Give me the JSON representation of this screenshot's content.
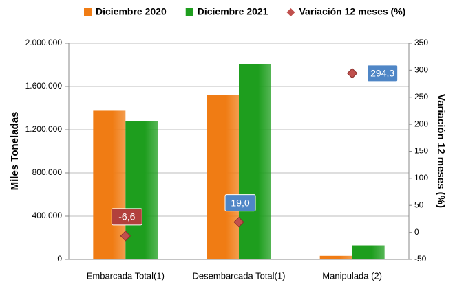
{
  "chart_data": {
    "type": "bar",
    "categories": [
      "Embarcada Total(1)",
      "Desembarcada Total(1)",
      "Manipulada (2)"
    ],
    "y_label": "Miles  Toneladas",
    "y2_label": "Variación 12 meses (%)",
    "series": [
      {
        "name": "Diciembre 2020",
        "color": "#f07c14",
        "values": [
          1375000,
          1518000,
          33000
        ]
      },
      {
        "name": "Diciembre 2021",
        "color": "#1e9e1e",
        "values": [
          1282000,
          1806000,
          130000
        ]
      },
      {
        "name": "Variación 12 meses (%)",
        "type": "scatter",
        "axis": "y2",
        "color": "#c0504d",
        "values": [
          -6.6,
          19.0,
          294.3
        ],
        "value_labels": [
          "-6,6",
          "19,0",
          "294,3"
        ]
      }
    ],
    "ylim": [
      0,
      2000000
    ],
    "yticks": [
      {
        "value": 0,
        "label": "0"
      },
      {
        "value": 400000,
        "label": "400.000"
      },
      {
        "value": 800000,
        "label": "800.000"
      },
      {
        "value": 1200000,
        "label": "1.200.000"
      },
      {
        "value": 1600000,
        "label": "1.600.000"
      },
      {
        "value": 2000000,
        "label": "2.000.000"
      }
    ],
    "y2lim": [
      -50,
      350
    ],
    "y2ticks": [
      -50,
      0,
      50,
      100,
      150,
      200,
      250,
      300,
      350
    ],
    "grid": true
  }
}
